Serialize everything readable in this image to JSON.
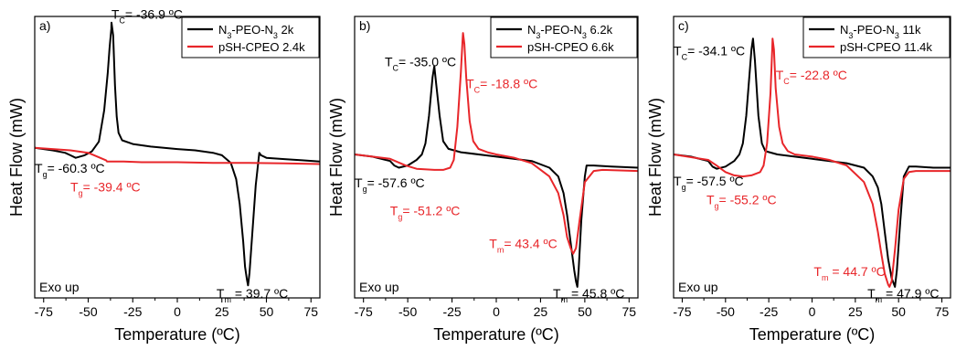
{
  "colors": {
    "black_series": "#000000",
    "red_series": "#e8262a"
  },
  "chart_data": [
    {
      "type": "line",
      "panel_label": "a)",
      "xlabel": "Temperature (ºC)",
      "ylabel": "Heat Flow (mW)",
      "xlim": [
        -80,
        80
      ],
      "xticks": [
        -75,
        -50,
        -25,
        0,
        25,
        50,
        75
      ],
      "ylim": [
        -1.2,
        1.05
      ],
      "corner_note": "Exo up",
      "legend_position": "top-right",
      "series": [
        {
          "name": "N₃-PEO-N₃ 2k",
          "color": "black",
          "x": [
            -80,
            -70,
            -63,
            -60,
            -57,
            -52,
            -48,
            -44,
            -41,
            -39,
            -38,
            -37,
            -36.9,
            -36,
            -35,
            -34,
            -33,
            -31,
            -25,
            -15,
            0,
            10,
            20,
            25,
            30,
            33,
            35,
            37,
            38,
            39,
            39.7,
            40.5,
            42,
            44,
            46,
            47,
            50,
            60,
            70,
            80
          ],
          "y": [
            0.0,
            -0.02,
            -0.04,
            -0.06,
            -0.08,
            -0.06,
            -0.03,
            0.05,
            0.3,
            0.6,
            0.8,
            0.95,
            1.0,
            0.9,
            0.5,
            0.25,
            0.12,
            0.06,
            0.03,
            0.01,
            -0.01,
            -0.02,
            -0.04,
            -0.06,
            -0.12,
            -0.25,
            -0.45,
            -0.75,
            -0.95,
            -1.05,
            -1.1,
            -1.0,
            -0.7,
            -0.3,
            -0.04,
            -0.06,
            -0.08,
            -0.09,
            -0.1,
            -0.11
          ]
        },
        {
          "name": "pSH-CPEO 2.4k",
          "color": "red",
          "x": [
            -80,
            -70,
            -60,
            -50,
            -45,
            -40,
            -39.4,
            -35,
            -30,
            -20,
            0,
            20,
            40,
            60,
            80
          ],
          "y": [
            0.0,
            -0.01,
            -0.02,
            -0.04,
            -0.07,
            -0.1,
            -0.11,
            -0.11,
            -0.11,
            -0.115,
            -0.115,
            -0.12,
            -0.12,
            -0.125,
            -0.13
          ]
        }
      ],
      "annotations": [
        {
          "sym": "T",
          "sub": "C",
          "rest": "= -36.9 ºC",
          "color": "black",
          "x": -37,
          "y": 1.03
        },
        {
          "sym": "T",
          "sub": "g",
          "rest": "= -60.3 ºC",
          "color": "black",
          "x": -80,
          "y": -0.2
        },
        {
          "sym": "T",
          "sub": "g",
          "rest": "= -39.4 ºC",
          "color": "red",
          "x": -60,
          "y": -0.35
        },
        {
          "sym": "T",
          "sub": "m",
          "rest": " = 39.7 ºC",
          "color": "black",
          "x": 22,
          "y": -1.2
        }
      ]
    },
    {
      "type": "line",
      "panel_label": "b)",
      "xlabel": "Temperature (ºC)",
      "ylabel": "Heat Flow (mW)",
      "xlim": [
        -80,
        80
      ],
      "xticks": [
        -75,
        -50,
        -25,
        0,
        25,
        50,
        75
      ],
      "ylim": [
        -1.3,
        1.25
      ],
      "corner_note": "Exo up",
      "legend_position": "top-right",
      "series": [
        {
          "name": "N₃-PEO-N₃ 6.2k",
          "color": "black",
          "x": [
            -80,
            -70,
            -60,
            -57.6,
            -55,
            -50,
            -45,
            -42,
            -40,
            -38,
            -36,
            -35,
            -34,
            -32,
            -30,
            -27,
            -20,
            0,
            20,
            30,
            35,
            38,
            40,
            42,
            44,
            45,
            45.8,
            46.5,
            48,
            50,
            51,
            55,
            65,
            80
          ],
          "y": [
            0.0,
            -0.02,
            -0.06,
            -0.1,
            -0.12,
            -0.1,
            -0.05,
            0.0,
            0.1,
            0.35,
            0.7,
            0.8,
            0.65,
            0.35,
            0.12,
            0.05,
            0.02,
            -0.02,
            -0.06,
            -0.12,
            -0.2,
            -0.35,
            -0.55,
            -0.8,
            -1.05,
            -1.15,
            -1.2,
            -1.05,
            -0.6,
            -0.2,
            -0.1,
            -0.1,
            -0.11,
            -0.12
          ]
        },
        {
          "name": "pSH-CPEO 6.6k",
          "color": "red",
          "x": [
            -80,
            -60,
            -51.2,
            -45,
            -35,
            -30,
            -26,
            -24,
            -22,
            -20,
            -19,
            -18.8,
            -18,
            -17,
            -15,
            -13,
            -10,
            -5,
            0,
            10,
            20,
            30,
            35,
            38,
            40,
            42,
            43.4,
            45,
            47,
            50,
            55,
            60,
            80
          ],
          "y": [
            0.0,
            -0.04,
            -0.1,
            -0.13,
            -0.14,
            -0.14,
            -0.12,
            -0.05,
            0.25,
            0.75,
            1.05,
            1.1,
            1.0,
            0.7,
            0.3,
            0.12,
            0.05,
            0.02,
            0.0,
            -0.03,
            -0.08,
            -0.2,
            -0.35,
            -0.55,
            -0.75,
            -0.85,
            -0.9,
            -0.85,
            -0.6,
            -0.25,
            -0.15,
            -0.14,
            -0.15
          ]
        }
      ],
      "annotations": [
        {
          "sym": "T",
          "sub": "C",
          "rest": "= -35.0 ºC",
          "color": "black",
          "x": -63,
          "y": 0.8
        },
        {
          "sym": "T",
          "sub": "C",
          "rest": "= -18.8 ºC",
          "color": "red",
          "x": -17,
          "y": 0.6
        },
        {
          "sym": "T",
          "sub": "g",
          "rest": "= -57.6 ºC",
          "color": "black",
          "x": -80,
          "y": -0.3
        },
        {
          "sym": "T",
          "sub": "g",
          "rest": "= -51.2 ºC",
          "color": "red",
          "x": -60,
          "y": -0.55
        },
        {
          "sym": "T",
          "sub": "m",
          "rest": "= 43.4 ºC",
          "color": "red",
          "x": -4,
          "y": -0.85
        },
        {
          "sym": "T",
          "sub": "m",
          "rest": " = 45.8 ºC",
          "color": "black",
          "x": 32,
          "y": -1.3
        }
      ]
    },
    {
      "type": "line",
      "panel_label": "c)",
      "xlabel": "Temperature (ºC)",
      "ylabel": "Heat Flow (mW)",
      "xlim": [
        -80,
        80
      ],
      "xticks": [
        -75,
        -50,
        -25,
        0,
        25,
        50,
        75
      ],
      "ylim": [
        -1.3,
        1.25
      ],
      "corner_note": "Exo up",
      "legend_position": "top-right",
      "series": [
        {
          "name": "N₃-PEO-N₃ 11k",
          "color": "black",
          "x": [
            -80,
            -70,
            -60,
            -57.5,
            -55,
            -50,
            -45,
            -42,
            -40,
            -38,
            -36,
            -35,
            -34.1,
            -33,
            -31,
            -29,
            -27,
            -20,
            0,
            20,
            30,
            35,
            38,
            40,
            42,
            44,
            46,
            47.9,
            49,
            51,
            53,
            56,
            60,
            70,
            80
          ],
          "y": [
            0.0,
            -0.02,
            -0.06,
            -0.11,
            -0.13,
            -0.11,
            -0.06,
            0.0,
            0.1,
            0.35,
            0.75,
            0.95,
            1.05,
            0.85,
            0.35,
            0.1,
            0.03,
            0.0,
            -0.04,
            -0.08,
            -0.12,
            -0.2,
            -0.3,
            -0.45,
            -0.7,
            -0.95,
            -1.12,
            -1.2,
            -1.05,
            -0.6,
            -0.2,
            -0.11,
            -0.11,
            -0.12,
            -0.12
          ]
        },
        {
          "name": "pSH-CPEO 11.4k",
          "color": "red",
          "x": [
            -80,
            -60,
            -55.2,
            -50,
            -45,
            -40,
            -35,
            -30,
            -28,
            -26,
            -24,
            -23,
            -22.8,
            -22,
            -21,
            -19,
            -17,
            -14,
            -10,
            0,
            10,
            20,
            30,
            35,
            38,
            40,
            42,
            44,
            44.7,
            46,
            48,
            50,
            53,
            56,
            60,
            70,
            80
          ],
          "y": [
            0.0,
            -0.05,
            -0.1,
            -0.16,
            -0.19,
            -0.2,
            -0.19,
            -0.16,
            -0.1,
            0.1,
            0.55,
            0.95,
            1.05,
            0.95,
            0.6,
            0.25,
            0.1,
            0.03,
            0.0,
            -0.02,
            -0.05,
            -0.1,
            -0.25,
            -0.45,
            -0.7,
            -0.9,
            -1.08,
            -1.18,
            -1.2,
            -1.15,
            -0.85,
            -0.5,
            -0.22,
            -0.16,
            -0.15,
            -0.15,
            -0.15
          ]
        }
      ],
      "annotations": [
        {
          "sym": "T",
          "sub": "C",
          "rest": "= -34.1 ºC",
          "color": "black",
          "x": -80,
          "y": 0.9
        },
        {
          "sym": "T",
          "sub": "C",
          "rest": "= -22.8 ºC",
          "color": "red",
          "x": -21,
          "y": 0.68
        },
        {
          "sym": "T",
          "sub": "g",
          "rest": "= -57.5 ºC",
          "color": "black",
          "x": -80,
          "y": -0.28
        },
        {
          "sym": "T",
          "sub": "g",
          "rest": "= -55.2 ºC",
          "color": "red",
          "x": -61,
          "y": -0.45
        },
        {
          "sym": "T",
          "sub": "m",
          "rest": " = 44.7 ºC",
          "color": "red",
          "x": 1,
          "y": -1.1
        },
        {
          "sym": "T",
          "sub": "m",
          "rest": " = 47.9 ºC",
          "color": "black",
          "x": 32,
          "y": -1.3
        }
      ]
    }
  ]
}
